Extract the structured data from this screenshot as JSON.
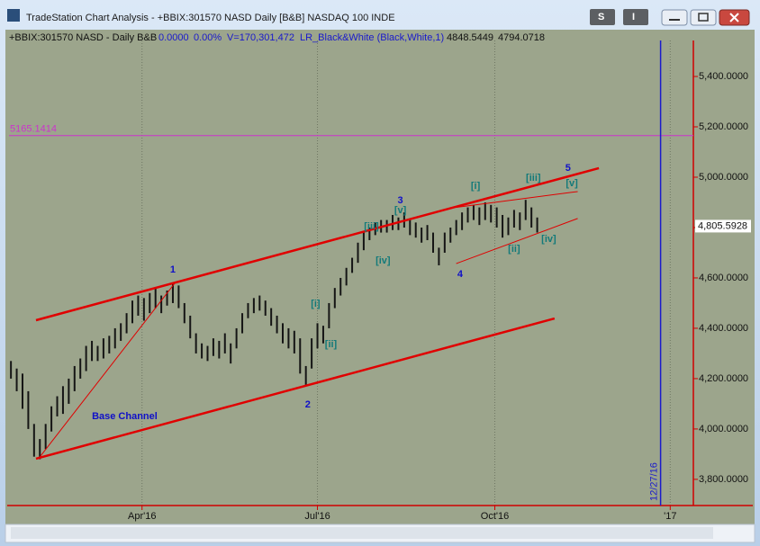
{
  "window": {
    "title": "TradeStation Chart Analysis - +BBIX:301570 NASD Daily [B&B] NASDAQ 100 INDE",
    "buttons": [
      "S",
      "I"
    ]
  },
  "info_bar": {
    "symbol": "+BBIX:301570 NASD - Daily  B&B",
    "change": "0.0000",
    "percent": "0.00%",
    "volume": "V=170,301,472",
    "indicator": "LR_Black&White (Black,White,1)",
    "value_1": "4848.5449",
    "value_2": "4794.0718"
  },
  "chart_data": {
    "type": "hlc",
    "color": "#151515",
    "x": [
      24,
      27,
      30,
      33,
      36,
      39,
      42,
      45,
      48,
      51,
      54,
      57,
      60,
      63,
      66,
      69,
      72,
      75,
      78,
      81,
      84,
      87,
      90,
      93,
      96,
      99,
      102,
      105,
      108,
      111,
      114,
      117,
      120,
      123,
      126,
      129,
      132,
      135,
      138,
      141,
      144,
      147,
      150,
      153,
      156,
      159,
      162,
      165,
      168,
      171,
      174,
      177,
      180,
      183,
      186,
      189,
      192,
      195,
      198,
      201,
      204,
      207,
      210,
      213,
      216,
      219,
      222,
      225,
      228,
      231,
      234,
      237,
      240,
      243,
      246,
      249,
      252,
      255,
      258,
      261,
      264,
      267,
      270,
      273,
      276,
      279,
      282,
      285,
      288,
      291,
      294,
      297
    ],
    "high": [
      4270,
      4240,
      4220,
      4150,
      4020,
      3960,
      4020,
      4090,
      4130,
      4170,
      4200,
      4250,
      4280,
      4330,
      4350,
      4330,
      4360,
      4370,
      4400,
      4420,
      4460,
      4510,
      4530,
      4520,
      4540,
      4560,
      4530,
      4550,
      4580,
      4570,
      4500,
      4450,
      4380,
      4340,
      4330,
      4360,
      4350,
      4380,
      4340,
      4400,
      4460,
      4500,
      4520,
      4530,
      4510,
      4480,
      4450,
      4420,
      4400,
      4390,
      4360,
      4250,
      4360,
      4420,
      4410,
      4500,
      4560,
      4600,
      4640,
      4680,
      4740,
      4780,
      4800,
      4820,
      4830,
      4830,
      4850,
      4840,
      4860,
      4830,
      4820,
      4800,
      4810,
      4780,
      4720,
      4780,
      4800,
      4830,
      4860,
      4880,
      4890,
      4880,
      4900,
      4890,
      4880,
      4850,
      4840,
      4870,
      4860,
      4910,
      4880,
      4840
    ],
    "low": [
      4200,
      4150,
      4080,
      4000,
      3890,
      3880,
      3920,
      3990,
      4050,
      4060,
      4100,
      4150,
      4200,
      4230,
      4270,
      4270,
      4280,
      4300,
      4320,
      4350,
      4380,
      4420,
      4450,
      4430,
      4460,
      4480,
      4460,
      4490,
      4500,
      4480,
      4420,
      4360,
      4300,
      4280,
      4270,
      4290,
      4280,
      4300,
      4260,
      4320,
      4380,
      4440,
      4460,
      4470,
      4450,
      4410,
      4380,
      4340,
      4320,
      4300,
      4220,
      4170,
      4240,
      4320,
      4340,
      4400,
      4480,
      4530,
      4570,
      4620,
      4660,
      4710,
      4750,
      4770,
      4780,
      4780,
      4790,
      4790,
      4800,
      4770,
      4760,
      4740,
      4750,
      4700,
      4650,
      4700,
      4740,
      4770,
      4790,
      4820,
      4830,
      4810,
      4830,
      4820,
      4800,
      4760,
      4770,
      4800,
      4790,
      4830,
      4800,
      4780
    ],
    "xlim": [
      23,
      378
    ],
    "ylim": [
      3696,
      5543
    ],
    "xticks": [
      {
        "value": 92,
        "label": "Apr'16"
      },
      {
        "value": 183,
        "label": "Jul'16"
      },
      {
        "value": 275,
        "label": "Oct'16"
      },
      {
        "value": 366,
        "label": "'17"
      }
    ],
    "yticks": [
      {
        "value": 3800,
        "label": "3,800.0000"
      },
      {
        "value": 4000,
        "label": "4,000.0000"
      },
      {
        "value": 4200,
        "label": "4,200.0000"
      },
      {
        "value": 4400,
        "label": "4,400.0000"
      },
      {
        "value": 4600,
        "label": "4,600.0000"
      },
      {
        "value": 4800,
        "label": "4,800.0000"
      },
      {
        "value": 5000,
        "label": "5,000.0000"
      },
      {
        "value": 5200,
        "label": "5,200.0000"
      },
      {
        "value": 5400,
        "label": "5,400.0000"
      }
    ],
    "grid": true,
    "last_price": {
      "value": 4805.5928,
      "label": "4,805.5928"
    },
    "hline": {
      "value": 5165.1414,
      "color": "#cc33cc"
    },
    "vline": {
      "x": 361,
      "label": "12/27/16",
      "color": "#1a1acc"
    },
    "lines": [
      {
        "x": [
          37,
          329
        ],
        "y": [
          4432,
          5036
        ],
        "color": "#e00000",
        "width": 2.5
      },
      {
        "x": [
          37,
          306
        ],
        "y": [
          3882,
          4439
        ],
        "color": "#e00000",
        "width": 2.5
      },
      {
        "x": [
          39,
          109
        ],
        "y": [
          3889,
          4579
        ],
        "color": "#e00000",
        "width": 1
      },
      {
        "x": [
          255,
          318
        ],
        "y": [
          4880,
          4943
        ],
        "color": "#e00000",
        "width": 1
      },
      {
        "x": [
          255,
          318
        ],
        "y": [
          4657,
          4836
        ],
        "color": "#e00000",
        "width": 1
      }
    ],
    "annotations": [
      {
        "text": "1",
        "x": 108,
        "y": 4631,
        "color": "#1010c8"
      },
      {
        "text": "2",
        "x": 178,
        "y": 4096,
        "color": "#1010c8"
      },
      {
        "text": "3",
        "x": 226,
        "y": 4907,
        "color": "#1010c8"
      },
      {
        "text": "4",
        "x": 257,
        "y": 4614,
        "color": "#1010c8"
      },
      {
        "text": "5",
        "x": 313,
        "y": 5036,
        "color": "#1010c8"
      },
      {
        "text": "[i]",
        "x": 182,
        "y": 4496,
        "color": "#137a7a"
      },
      {
        "text": "[ii]",
        "x": 190,
        "y": 4336,
        "color": "#137a7a"
      },
      {
        "text": "[iii]",
        "x": 211,
        "y": 4804,
        "color": "#137a7a"
      },
      {
        "text": "[iv]",
        "x": 217,
        "y": 4668,
        "color": "#137a7a"
      },
      {
        "text": "[v]",
        "x": 226,
        "y": 4868,
        "color": "#137a7a"
      },
      {
        "text": "[i]",
        "x": 265,
        "y": 4964,
        "color": "#137a7a"
      },
      {
        "text": "[ii]",
        "x": 285,
        "y": 4714,
        "color": "#137a7a"
      },
      {
        "text": "[iii]",
        "x": 295,
        "y": 4996,
        "color": "#137a7a"
      },
      {
        "text": "[iv]",
        "x": 303,
        "y": 4754,
        "color": "#137a7a"
      },
      {
        "text": "[v]",
        "x": 315,
        "y": 4975,
        "color": "#137a7a"
      },
      {
        "text": "Base Channel",
        "x": 83,
        "y": 4050,
        "color": "#1010c8"
      }
    ]
  }
}
